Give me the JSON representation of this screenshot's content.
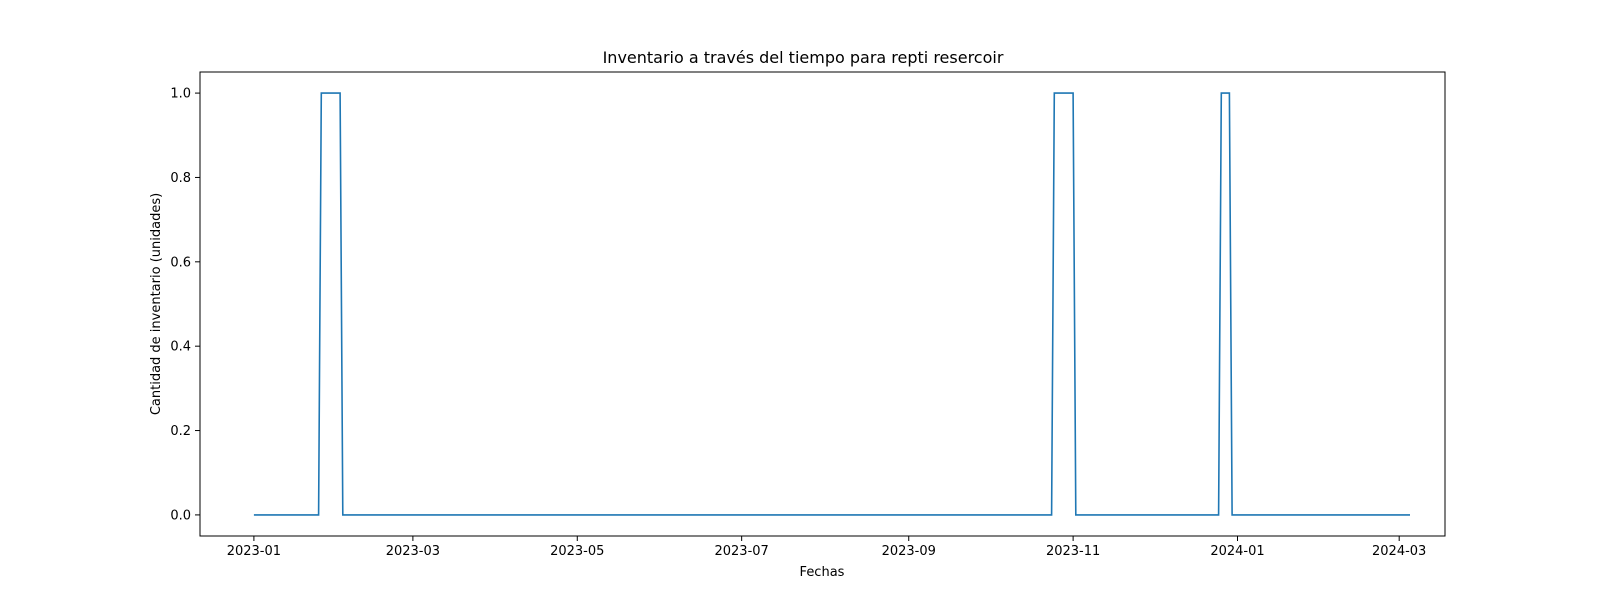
{
  "chart_data": {
    "type": "line",
    "title": "Inventario a través del tiempo para  repti resercoir",
    "xlabel": "Fechas",
    "ylabel": "Cantidad de inventario (unidades)",
    "xlim": [
      "2022-12-12",
      "2024-03-18"
    ],
    "ylim": [
      -0.05,
      1.05
    ],
    "grid": false,
    "x_ticks": [
      "2023-01",
      "2023-03",
      "2023-05",
      "2023-07",
      "2023-09",
      "2023-11",
      "2024-01",
      "2024-03"
    ],
    "y_ticks": [
      "0.0",
      "0.2",
      "0.4",
      "0.6",
      "0.8",
      "1.0"
    ],
    "series": [
      {
        "color": "#1f77b4",
        "x": [
          "2023-01-01",
          "2023-01-25",
          "2023-01-26",
          "2023-02-02",
          "2023-02-03",
          "2023-10-24",
          "2023-10-25",
          "2023-11-01",
          "2023-11-02",
          "2023-12-25",
          "2023-12-26",
          "2023-12-29",
          "2023-12-30",
          "2024-03-05"
        ],
        "y": [
          0,
          0,
          1,
          1,
          0,
          0,
          1,
          1,
          0,
          0,
          1,
          1,
          0,
          0
        ]
      }
    ]
  }
}
